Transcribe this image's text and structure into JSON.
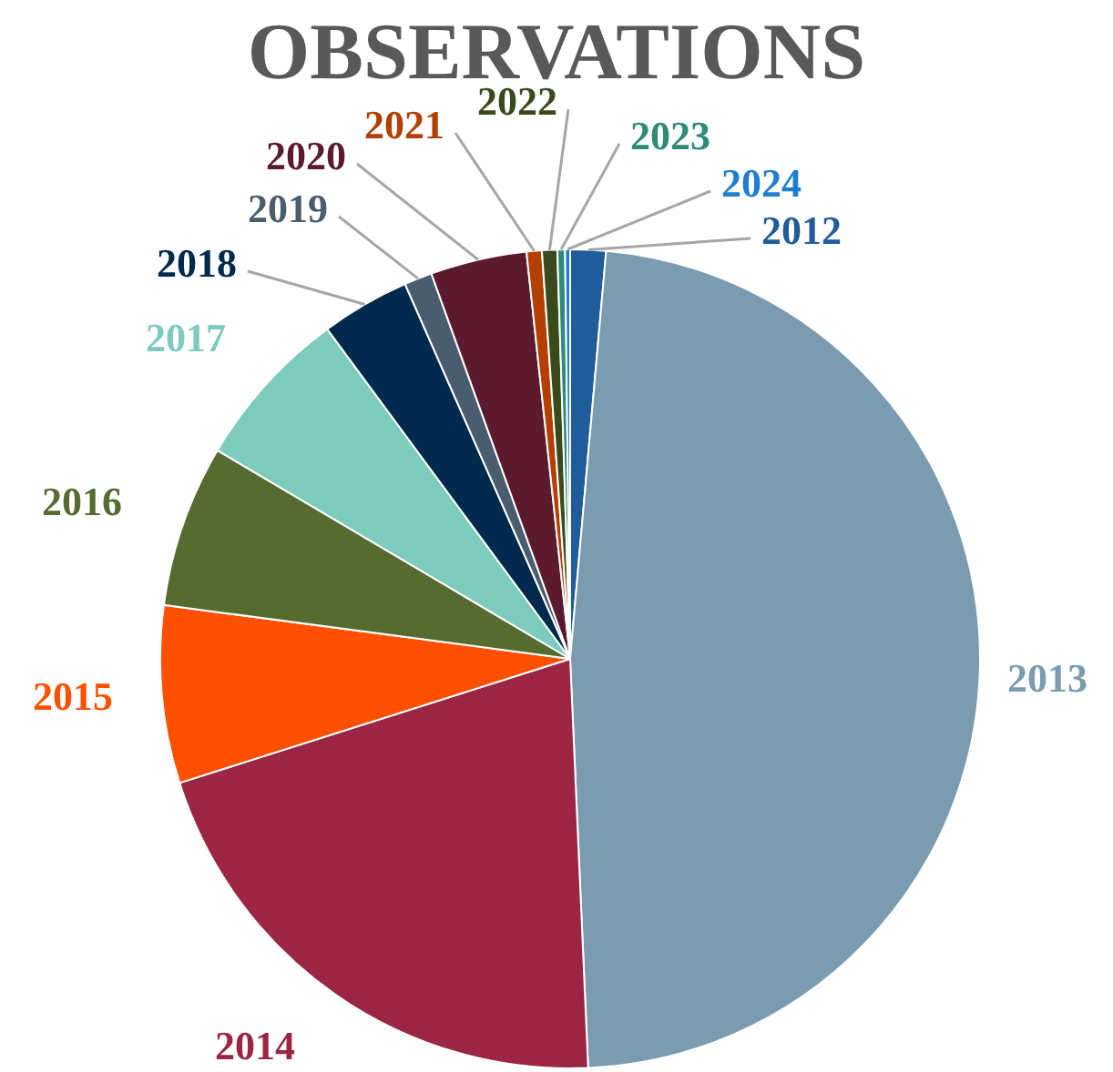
{
  "chart_data": {
    "type": "pie",
    "title": "OBSERVATIONS",
    "categories": [
      "2012",
      "2013",
      "2014",
      "2015",
      "2016",
      "2017",
      "2018",
      "2019",
      "2020",
      "2021",
      "2022",
      "2023",
      "2024"
    ],
    "values": [
      1.4,
      47.9,
      20.8,
      7,
      6.4,
      6.4,
      3.5,
      1.1,
      3.8,
      0.6,
      0.6,
      0.3,
      0.2
    ],
    "colors": [
      "#1f5c99",
      "#7a9bb0",
      "#9b2543",
      "#ff5000",
      "#556b2f",
      "#7ccbbd",
      "#002a4d",
      "#4a5d6e",
      "#5c1a2e",
      "#b34000",
      "#3a4a1a",
      "#2e8b7a",
      "#1e7fd0"
    ]
  }
}
